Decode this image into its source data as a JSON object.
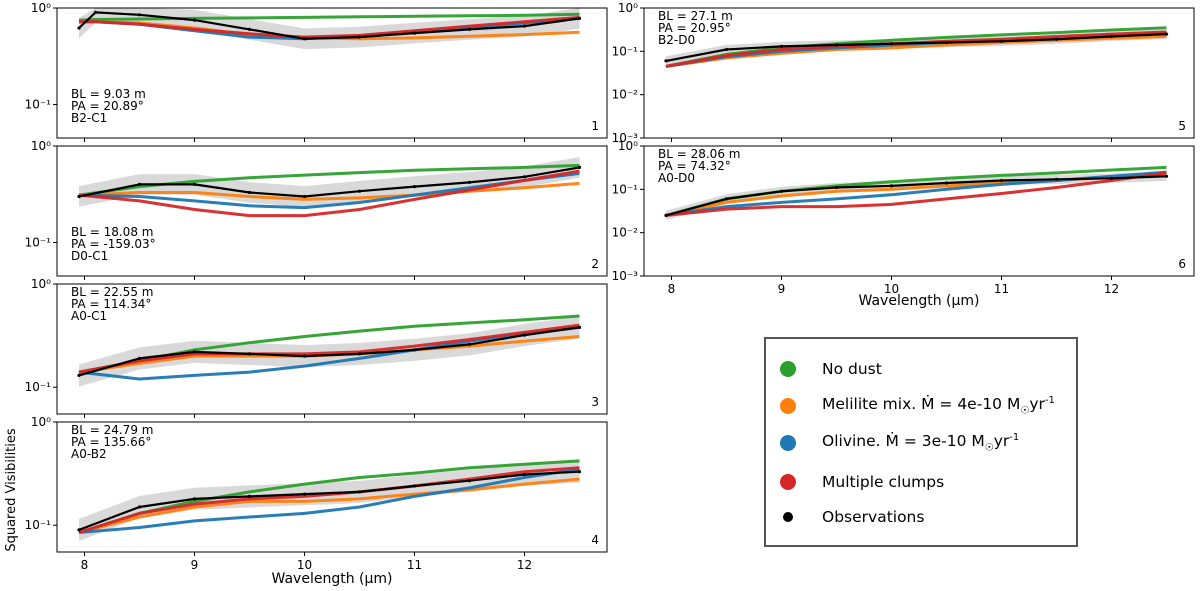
{
  "chart_data": {
    "type": "line",
    "ylabel": "Squared Visibilities",
    "xlabel": "Wavelength (µm)",
    "xlim": [
      7.75,
      12.75
    ],
    "xticks": [
      "8",
      "9",
      "10",
      "11",
      "12"
    ],
    "series_names": [
      "No dust",
      "Melilite mix. Ṁ = 4e-10 M☉yr⁻¹",
      "Olivine. Ṁ = 3e-10 M☉yr⁻¹",
      "Multiple clumps",
      "Observations"
    ],
    "colors": {
      "no_dust": "#2ca02c",
      "melilite": "#ff7f0e",
      "olivine": "#1f77b4",
      "clumps": "#d62728",
      "obs": "#000000",
      "band": "#cccccc"
    },
    "panels": [
      {
        "id": "1",
        "bl": "BL = 9.03 m",
        "pa": "PA = 20.89°",
        "pair": "B2-C1",
        "ylim": [
          0.045,
          1.0
        ],
        "yticks": [
          {
            "v": 1.0,
            "l": "10⁰"
          },
          {
            "v": 0.1,
            "l": "10⁻¹"
          }
        ],
        "x": [
          7.95,
          8.1,
          8.5,
          9.0,
          9.5,
          10.0,
          10.5,
          11.0,
          11.5,
          12.0,
          12.5
        ],
        "no_dust": [
          0.75,
          0.76,
          0.77,
          0.78,
          0.79,
          0.8,
          0.81,
          0.82,
          0.83,
          0.84,
          0.86
        ],
        "melilite": [
          0.72,
          0.72,
          0.7,
          0.62,
          0.53,
          0.49,
          0.48,
          0.49,
          0.51,
          0.53,
          0.56
        ],
        "olivine": [
          0.72,
          0.72,
          0.68,
          0.58,
          0.5,
          0.48,
          0.51,
          0.57,
          0.63,
          0.7,
          0.78
        ],
        "clumps": [
          0.72,
          0.72,
          0.68,
          0.6,
          0.54,
          0.5,
          0.52,
          0.58,
          0.65,
          0.72,
          0.8
        ],
        "obs": [
          0.62,
          0.9,
          0.85,
          0.75,
          0.6,
          0.48,
          0.5,
          0.55,
          0.6,
          0.65,
          0.78
        ]
      },
      {
        "id": "2",
        "bl": "BL = 18.08 m",
        "pa": "PA = -159.03°",
        "pair": "D0-C1",
        "ylim": [
          0.045,
          1.0
        ],
        "yticks": [
          {
            "v": 1.0,
            "l": "10⁰"
          },
          {
            "v": 0.1,
            "l": "10⁻¹"
          }
        ],
        "x": [
          7.95,
          8.5,
          9.0,
          9.5,
          10.0,
          10.5,
          11.0,
          11.5,
          12.0,
          12.5
        ],
        "no_dust": [
          0.31,
          0.38,
          0.43,
          0.47,
          0.5,
          0.53,
          0.56,
          0.58,
          0.6,
          0.63
        ],
        "melilite": [
          0.31,
          0.33,
          0.33,
          0.3,
          0.28,
          0.29,
          0.31,
          0.34,
          0.37,
          0.41
        ],
        "olivine": [
          0.31,
          0.3,
          0.27,
          0.24,
          0.23,
          0.26,
          0.31,
          0.37,
          0.44,
          0.52
        ],
        "clumps": [
          0.31,
          0.27,
          0.22,
          0.19,
          0.19,
          0.22,
          0.28,
          0.35,
          0.44,
          0.55
        ],
        "obs": [
          0.3,
          0.4,
          0.4,
          0.33,
          0.3,
          0.34,
          0.38,
          0.42,
          0.48,
          0.6
        ]
      },
      {
        "id": "3",
        "bl": "BL = 22.55 m",
        "pa": "PA = 114.34°",
        "pair": "A0-C1",
        "ylim": [
          0.055,
          1.0
        ],
        "yticks": [
          {
            "v": 1.0,
            "l": "10⁰"
          },
          {
            "v": 0.1,
            "l": "10⁻¹"
          }
        ],
        "x": [
          7.95,
          8.5,
          9.0,
          9.5,
          10.0,
          10.5,
          11.0,
          11.5,
          12.0,
          12.5
        ],
        "no_dust": [
          0.14,
          0.18,
          0.23,
          0.27,
          0.31,
          0.35,
          0.39,
          0.42,
          0.45,
          0.49
        ],
        "melilite": [
          0.14,
          0.17,
          0.2,
          0.2,
          0.2,
          0.21,
          0.23,
          0.25,
          0.28,
          0.31
        ],
        "olivine": [
          0.14,
          0.12,
          0.13,
          0.14,
          0.16,
          0.19,
          0.23,
          0.28,
          0.33,
          0.38
        ],
        "clumps": [
          0.14,
          0.18,
          0.21,
          0.21,
          0.21,
          0.22,
          0.25,
          0.29,
          0.34,
          0.4
        ],
        "obs": [
          0.13,
          0.19,
          0.22,
          0.21,
          0.2,
          0.21,
          0.23,
          0.26,
          0.32,
          0.38
        ]
      },
      {
        "id": "4",
        "bl": "BL = 24.79 m",
        "pa": "PA = 135.66°",
        "pair": "A0-B2",
        "ylim": [
          0.055,
          1.0
        ],
        "yticks": [
          {
            "v": 1.0,
            "l": "10⁰"
          },
          {
            "v": 0.1,
            "l": "10⁻¹"
          }
        ],
        "x": [
          7.95,
          8.5,
          9.0,
          9.5,
          10.0,
          10.5,
          11.0,
          11.5,
          12.0,
          12.5
        ],
        "no_dust": [
          0.085,
          0.13,
          0.17,
          0.21,
          0.25,
          0.29,
          0.32,
          0.36,
          0.39,
          0.42
        ],
        "melilite": [
          0.085,
          0.12,
          0.15,
          0.17,
          0.17,
          0.18,
          0.2,
          0.22,
          0.25,
          0.28
        ],
        "olivine": [
          0.085,
          0.095,
          0.11,
          0.12,
          0.13,
          0.15,
          0.19,
          0.23,
          0.29,
          0.35
        ],
        "clumps": [
          0.085,
          0.13,
          0.16,
          0.18,
          0.19,
          0.21,
          0.24,
          0.28,
          0.33,
          0.36
        ],
        "obs": [
          0.09,
          0.15,
          0.18,
          0.19,
          0.2,
          0.21,
          0.24,
          0.27,
          0.31,
          0.33
        ]
      },
      {
        "id": "5",
        "bl": "BL = 27.1 m",
        "pa": "PA = 20.95°",
        "pair": "B2-D0",
        "ylim": [
          0.001,
          1.0
        ],
        "yticks": [
          {
            "v": 1.0,
            "l": "10⁰"
          },
          {
            "v": 0.1,
            "l": "10⁻¹"
          },
          {
            "v": 0.01,
            "l": "10⁻²"
          },
          {
            "v": 0.001,
            "l": "10⁻³"
          }
        ],
        "x": [
          7.95,
          8.5,
          9.0,
          9.5,
          10.0,
          10.5,
          11.0,
          11.5,
          12.0,
          12.5
        ],
        "no_dust": [
          0.045,
          0.085,
          0.12,
          0.15,
          0.18,
          0.21,
          0.24,
          0.27,
          0.31,
          0.35
        ],
        "melilite": [
          0.045,
          0.07,
          0.09,
          0.11,
          0.12,
          0.14,
          0.16,
          0.18,
          0.2,
          0.22
        ],
        "olivine": [
          0.045,
          0.075,
          0.1,
          0.12,
          0.14,
          0.16,
          0.18,
          0.2,
          0.23,
          0.26
        ],
        "clumps": [
          0.045,
          0.08,
          0.11,
          0.13,
          0.15,
          0.17,
          0.19,
          0.22,
          0.25,
          0.28
        ],
        "obs": [
          0.06,
          0.11,
          0.13,
          0.14,
          0.15,
          0.16,
          0.17,
          0.19,
          0.22,
          0.25
        ]
      },
      {
        "id": "6",
        "bl": "BL = 28.06 m",
        "pa": "PA = 74.32°",
        "pair": "A0-D0",
        "ylim": [
          0.001,
          1.0
        ],
        "yticks": [
          {
            "v": 1.0,
            "l": "10⁰"
          },
          {
            "v": 0.1,
            "l": "10⁻¹"
          },
          {
            "v": 0.01,
            "l": "10⁻²"
          },
          {
            "v": 0.001,
            "l": "10⁻³"
          }
        ],
        "x": [
          7.95,
          8.5,
          9.0,
          9.5,
          10.0,
          10.5,
          11.0,
          11.5,
          12.0,
          12.5
        ],
        "no_dust": [
          0.025,
          0.06,
          0.09,
          0.12,
          0.15,
          0.18,
          0.21,
          0.24,
          0.28,
          0.32
        ],
        "melilite": [
          0.025,
          0.05,
          0.07,
          0.09,
          0.1,
          0.12,
          0.14,
          0.16,
          0.19,
          0.22
        ],
        "olivine": [
          0.025,
          0.04,
          0.05,
          0.06,
          0.075,
          0.1,
          0.13,
          0.16,
          0.2,
          0.25
        ],
        "clumps": [
          0.025,
          0.035,
          0.04,
          0.04,
          0.045,
          0.06,
          0.08,
          0.11,
          0.16,
          0.24
        ],
        "obs": [
          0.025,
          0.06,
          0.09,
          0.11,
          0.12,
          0.14,
          0.16,
          0.17,
          0.18,
          0.2
        ]
      }
    ]
  },
  "legend": {
    "no_dust": "No dust",
    "melilite_prefix": "Melilite mix. ",
    "melilite_mdot": "Ṁ = 4e-10 M",
    "olivine_prefix": "Olivine. ",
    "olivine_mdot": "Ṁ = 3e-10 M",
    "sun_symbol": "☉",
    "unit_yr": "yr",
    "unit_exp": "-1",
    "clumps": "Multiple clumps",
    "obs": "Observations"
  }
}
